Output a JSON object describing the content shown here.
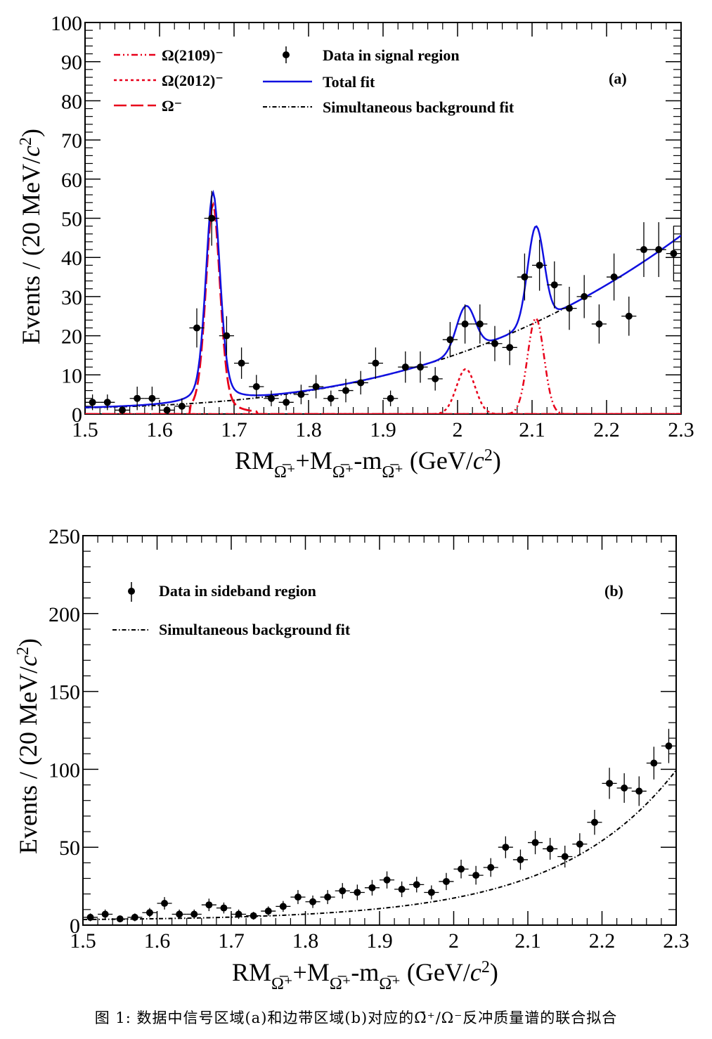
{
  "caption": "图 1: 数据中信号区域(a)和边带区域(b)对应的Ω̄⁺/Ω⁻反冲质量谱的联合拟合",
  "chart_data": [
    {
      "type": "scatter",
      "panel_tag": "(a)",
      "xlabel": "RMΩ̅⁺+MΩ̅⁺-mΩ̅⁺ (GeV/c²)",
      "ylabel": "Events / (20 MeV/c²)",
      "xlim": [
        1.5,
        2.3
      ],
      "ylim": [
        0,
        100
      ],
      "xticks": [
        "1.5",
        "1.6",
        "1.7",
        "1.8",
        "1.9",
        "2",
        "2.1",
        "2.2",
        "2.3"
      ],
      "yticks": [
        "0",
        "10",
        "20",
        "30",
        "40",
        "50",
        "60",
        "70",
        "80",
        "90",
        "100"
      ],
      "legend": [
        "Ω(2109)⁻",
        "Ω(2012)⁻",
        "Ω⁻",
        "Data in signal region",
        "Total fit",
        "Simultaneous background fit"
      ],
      "colors": {
        "omega2109": "#e8001a",
        "omega2012": "#e8001a",
        "omega": "#e8001a",
        "total": "#1010e0",
        "background": "#000000",
        "data": "#000000"
      },
      "data_x": [
        1.51,
        1.53,
        1.55,
        1.57,
        1.59,
        1.61,
        1.63,
        1.65,
        1.67,
        1.69,
        1.71,
        1.73,
        1.75,
        1.77,
        1.79,
        1.81,
        1.83,
        1.85,
        1.87,
        1.89,
        1.91,
        1.93,
        1.95,
        1.97,
        1.99,
        2.01,
        2.03,
        2.05,
        2.07,
        2.09,
        2.11,
        2.13,
        2.15,
        2.17,
        2.19,
        2.21,
        2.23,
        2.25,
        2.27,
        2.29
      ],
      "data_y": [
        3,
        3,
        1,
        4,
        4,
        1,
        2,
        22,
        50,
        20,
        13,
        7,
        4,
        3,
        5,
        7,
        4,
        6,
        8,
        13,
        4,
        12,
        12,
        9,
        19,
        23,
        23,
        18,
        17,
        35,
        38,
        33,
        27,
        30,
        23,
        35,
        25,
        42,
        42,
        41
      ],
      "data_err": [
        2,
        2,
        1,
        3,
        3,
        1,
        2,
        5,
        7,
        5,
        4,
        3,
        2,
        2,
        2.5,
        3,
        2,
        3,
        3,
        4,
        2,
        4,
        4,
        3,
        4.5,
        5,
        5,
        4.5,
        4.5,
        6,
        6.5,
        6,
        5.5,
        5.5,
        5,
        6,
        5,
        7,
        7,
        7
      ]
    },
    {
      "type": "scatter",
      "panel_tag": "(b)",
      "xlabel": "RMΩ̅⁺+MΩ̅⁺-mΩ̅⁺ (GeV/c²)",
      "ylabel": "Events / (20 MeV/c²)",
      "xlim": [
        1.5,
        2.3
      ],
      "ylim": [
        0,
        250
      ],
      "xticks": [
        "1.5",
        "1.6",
        "1.7",
        "1.8",
        "1.9",
        "2",
        "2.1",
        "2.2",
        "2.3"
      ],
      "yticks": [
        "0",
        "50",
        "100",
        "150",
        "200",
        "250"
      ],
      "legend": [
        "Data in sideband region",
        "Simultaneous background fit"
      ],
      "colors": {
        "background": "#000000",
        "data": "#000000"
      },
      "data_x": [
        1.51,
        1.53,
        1.55,
        1.57,
        1.59,
        1.61,
        1.63,
        1.65,
        1.67,
        1.69,
        1.71,
        1.73,
        1.75,
        1.77,
        1.79,
        1.81,
        1.83,
        1.85,
        1.87,
        1.89,
        1.91,
        1.93,
        1.95,
        1.97,
        1.99,
        2.01,
        2.03,
        2.05,
        2.07,
        2.09,
        2.11,
        2.13,
        2.15,
        2.17,
        2.19,
        2.21,
        2.23,
        2.25,
        2.27,
        2.29
      ],
      "data_y": [
        5,
        7,
        4,
        5,
        8,
        14,
        7,
        7,
        13,
        11,
        7,
        6,
        9,
        12,
        18,
        15,
        18,
        22,
        21,
        24,
        29,
        23,
        26,
        21,
        28,
        36,
        32,
        37,
        50,
        42,
        53,
        49,
        44,
        52,
        66,
        91,
        88,
        86,
        104,
        115
      ],
      "data_err": [
        2.5,
        3,
        2,
        2.5,
        3,
        4,
        3,
        3,
        4,
        3.5,
        3,
        2.5,
        3,
        3.5,
        4.5,
        4,
        4.5,
        5,
        5,
        5,
        5.5,
        5,
        5,
        4.5,
        5.5,
        6,
        6,
        6,
        7,
        6.5,
        7.5,
        7,
        7,
        7,
        8,
        10,
        9.5,
        9.5,
        10.5,
        11
      ]
    }
  ]
}
